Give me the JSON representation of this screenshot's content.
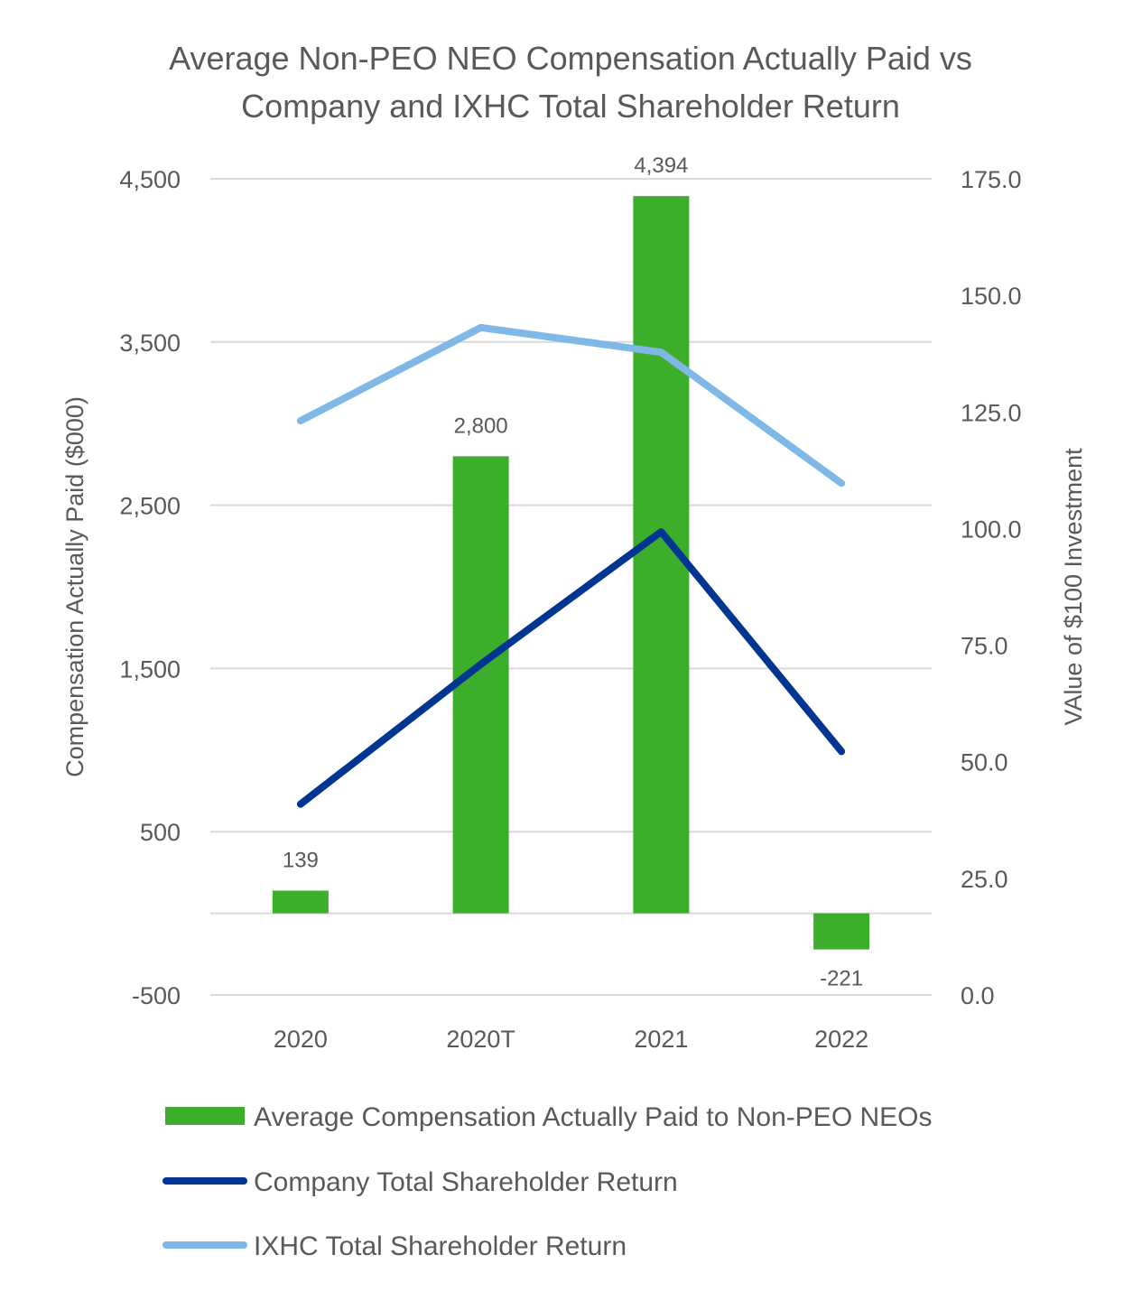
{
  "chart_data": {
    "type": "bar+line",
    "title_lines": [
      "Average Non-PEO NEO Compensation Actually Paid vs",
      "Company and IXHC Total Shareholder Return"
    ],
    "categories": [
      "2020",
      "2020T",
      "2021",
      "2022"
    ],
    "y_left": {
      "label": "Compensation Actually Paid ($000)",
      "lim": [
        -500,
        4500
      ],
      "ticks": [
        -500,
        500,
        1500,
        2500,
        3500,
        4500
      ],
      "tick_labels": [
        "-500",
        "500",
        "1,500",
        "2,500",
        "3,500",
        "4,500"
      ]
    },
    "y_right": {
      "label": "VAlue of $100 Investment",
      "lim": [
        0,
        175
      ],
      "ticks": [
        0,
        25,
        50,
        75,
        100,
        125,
        150,
        175
      ],
      "tick_labels": [
        "0.0",
        "25.0",
        "50.0",
        "75.0",
        "100.0",
        "125.0",
        "150.0",
        "175.0"
      ]
    },
    "grid": true,
    "legend_position": "bottom",
    "series": [
      {
        "name": "Average Compensation Actually Paid to Non-PEO NEOs",
        "kind": "bar",
        "axis": "left",
        "color": "#3dae2b",
        "values": [
          139,
          2800,
          4394,
          -221
        ],
        "data_labels": [
          "139",
          "2,800",
          "4,394",
          "-221"
        ]
      },
      {
        "name": "Company Total Shareholder Return",
        "kind": "line",
        "axis": "right",
        "color": "#003591",
        "values": [
          40.9,
          70.9,
          99.3,
          52.2
        ]
      },
      {
        "name": "IXHC Total Shareholder Return",
        "kind": "line",
        "axis": "right",
        "color": "#7fb8e6",
        "values": [
          123.1,
          143.1,
          137.8,
          109.7
        ]
      }
    ]
  }
}
